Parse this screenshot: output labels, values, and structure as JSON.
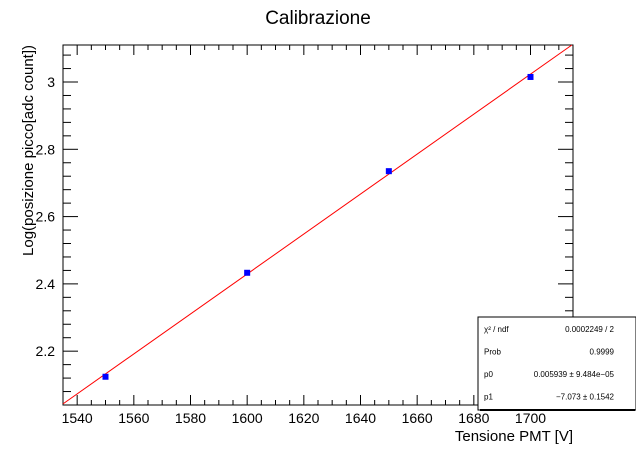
{
  "chart_data": {
    "type": "scatter",
    "title": "Calibrazione",
    "xlabel": "Tensione PMT [V]",
    "ylabel": "Log(posizione picco[adc count])",
    "xlim": [
      1535,
      1715
    ],
    "ylim": [
      2.04,
      3.11
    ],
    "x_ticks": [
      1540,
      1560,
      1580,
      1600,
      1620,
      1640,
      1660,
      1680,
      1700
    ],
    "y_ticks": [
      2.2,
      2.4,
      2.6,
      2.8,
      3.0
    ],
    "y_tick_labels": [
      "2.2",
      "2.4",
      "2.6",
      "2.8",
      "3"
    ],
    "grid": false,
    "points": [
      {
        "x": 1550,
        "y": 2.124
      },
      {
        "x": 1600,
        "y": 2.433
      },
      {
        "x": 1650,
        "y": 2.735
      },
      {
        "x": 1700,
        "y": 3.015
      }
    ],
    "marker_color": "#0000ff",
    "fit": {
      "color": "#ff0000",
      "p0_value": 0.005939,
      "p1_value": -7.073
    },
    "stats_box": {
      "position": "bottom-right",
      "rows": [
        {
          "label": "χ² / ndf",
          "value": "0.0002249 / 2"
        },
        {
          "label": "Prob",
          "value": "0.9999"
        },
        {
          "label": "p0",
          "value": "0.005939 ± 9.484e−05"
        },
        {
          "label": "p1",
          "value": "−7.073 ± 0.1542"
        }
      ]
    }
  }
}
